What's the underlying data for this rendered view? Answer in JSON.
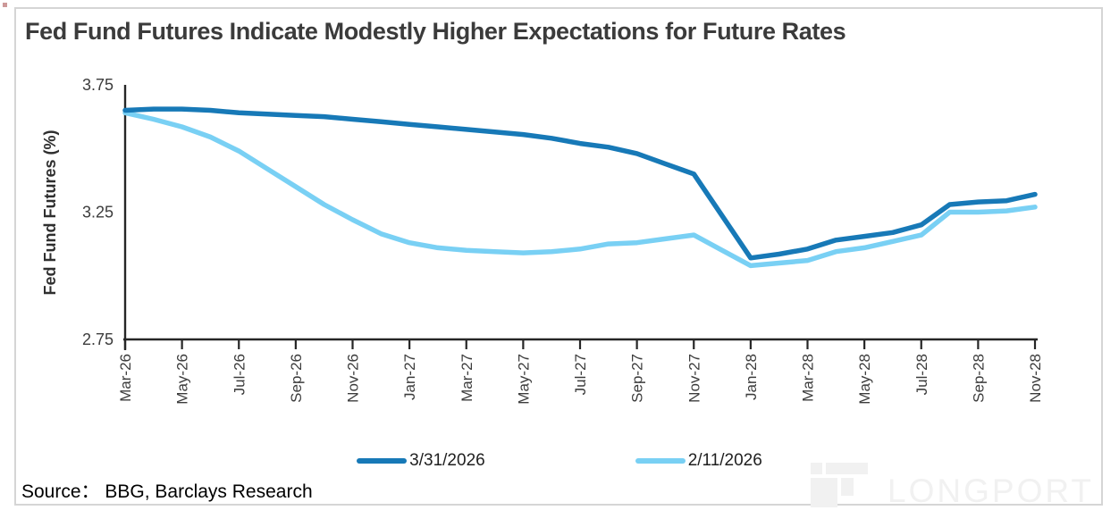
{
  "frame": {
    "title": "Fed Fund Futures Indicate Modestly Higher Expectations for Future Rates"
  },
  "source": {
    "label": "Source：  BBG, Barclays Research"
  },
  "watermark": {
    "text": "LONGPORT"
  },
  "legend": [
    {
      "label": "3/31/2026",
      "color": "#1779b7"
    },
    {
      "label": "2/11/2026",
      "color": "#79d0f4"
    }
  ],
  "chart_data": {
    "type": "line",
    "title": "Fed Fund Futures Indicate Modestly Higher Expectations for Future Rates",
    "xlabel": "",
    "ylabel": "Fed Fund Futures (%)",
    "ylim": [
      2.75,
      3.75
    ],
    "yticks": [
      3.75,
      3.25,
      2.75
    ],
    "grid": false,
    "legend_position": "bottom",
    "x": [
      "Mar-26",
      "Apr-26",
      "May-26",
      "Jun-26",
      "Jul-26",
      "Aug-26",
      "Sep-26",
      "Oct-26",
      "Nov-26",
      "Dec-26",
      "Jan-27",
      "Feb-27",
      "Mar-27",
      "Apr-27",
      "May-27",
      "Jun-27",
      "Jul-27",
      "Aug-27",
      "Sep-27",
      "Oct-27",
      "Nov-27",
      "Dec-27",
      "Jan-28",
      "Feb-28",
      "Mar-28",
      "Apr-28",
      "May-28",
      "Jun-28",
      "Jul-28",
      "Aug-28",
      "Sep-28",
      "Oct-28",
      "Nov-28"
    ],
    "x_tick_labels": [
      "Mar-26",
      "May-26",
      "Jul-26",
      "Sep-26",
      "Nov-26",
      "Jan-27",
      "Mar-27",
      "May-27",
      "Jul-27",
      "Sep-27",
      "Nov-27",
      "Jan-28",
      "Mar-28",
      "May-28",
      "Jul-28",
      "Sep-28",
      "Nov-28"
    ],
    "series": [
      {
        "name": "3/31/2026",
        "color": "#1779b7",
        "values": [
          3.65,
          3.655,
          3.655,
          3.65,
          3.64,
          3.635,
          3.63,
          3.625,
          3.615,
          3.605,
          3.595,
          3.585,
          3.575,
          3.565,
          3.555,
          3.54,
          3.52,
          3.505,
          3.48,
          3.44,
          3.4,
          3.235,
          3.07,
          3.085,
          3.105,
          3.14,
          3.155,
          3.17,
          3.2,
          3.28,
          3.29,
          3.295,
          3.32
        ]
      },
      {
        "name": "2/11/2026",
        "color": "#79d0f4",
        "values": [
          3.64,
          3.615,
          3.585,
          3.545,
          3.49,
          3.42,
          3.35,
          3.28,
          3.22,
          3.165,
          3.13,
          3.11,
          3.1,
          3.095,
          3.09,
          3.095,
          3.105,
          3.125,
          3.13,
          3.145,
          3.16,
          3.1,
          3.04,
          3.05,
          3.06,
          3.095,
          3.11,
          3.135,
          3.16,
          3.25,
          3.25,
          3.255,
          3.27
        ]
      }
    ]
  }
}
